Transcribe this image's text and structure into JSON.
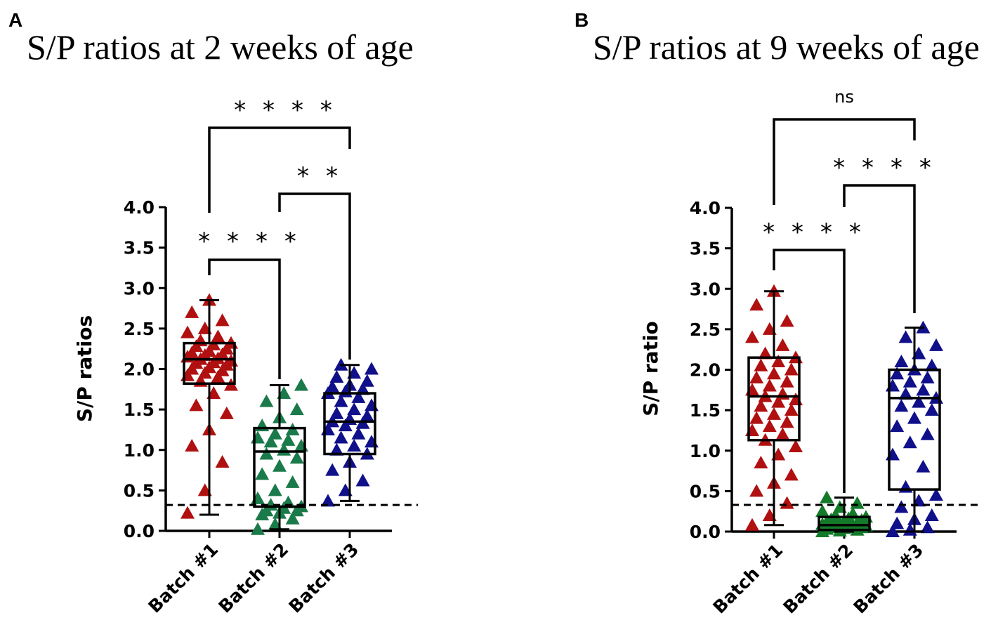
{
  "chart_data": [
    {
      "panel": "A",
      "type": "box-scatter",
      "title": "S/P ratios at 2 weeks of age",
      "ylabel": "S/P ratios",
      "xlabel": "",
      "ylim": [
        0,
        4.0
      ],
      "yticks": [
        "0.0",
        "0.5",
        "1.0",
        "1.5",
        "2.0",
        "2.5",
        "3.0",
        "3.5",
        "4.0"
      ],
      "cutoff": 0.32,
      "categories": [
        "Batch #1",
        "Batch #2",
        "Batch #3"
      ],
      "series": [
        {
          "name": "Batch #1",
          "color": "#b01010",
          "box": {
            "min": 0.2,
            "q1": 1.82,
            "median": 2.12,
            "q3": 2.32,
            "max": 2.85
          },
          "values": [
            0.22,
            0.5,
            0.85,
            1.05,
            1.25,
            1.45,
            1.55,
            1.7,
            1.8,
            1.85,
            1.9,
            1.92,
            1.95,
            1.98,
            2.0,
            2.02,
            2.05,
            2.07,
            2.08,
            2.1,
            2.12,
            2.13,
            2.15,
            2.17,
            2.18,
            2.2,
            2.22,
            2.25,
            2.28,
            2.3,
            2.32,
            2.35,
            2.4,
            2.45,
            2.5,
            2.6,
            2.7,
            2.85
          ]
        },
        {
          "name": "Batch #2",
          "color": "#1a7a4a",
          "box": {
            "min": 0.02,
            "q1": 0.3,
            "median": 0.98,
            "q3": 1.27,
            "max": 1.8
          },
          "values": [
            0.02,
            0.08,
            0.15,
            0.2,
            0.22,
            0.25,
            0.25,
            0.28,
            0.3,
            0.32,
            0.35,
            0.4,
            0.5,
            0.6,
            0.7,
            0.8,
            0.9,
            0.95,
            1.0,
            1.05,
            1.1,
            1.12,
            1.15,
            1.2,
            1.25,
            1.3,
            1.4,
            1.5,
            1.6,
            1.7,
            1.8
          ]
        },
        {
          "name": "Batch #3",
          "color": "#10108a",
          "box": {
            "min": 0.37,
            "q1": 0.95,
            "median": 1.35,
            "q3": 1.7,
            "max": 2.05
          },
          "values": [
            0.37,
            0.5,
            0.62,
            0.75,
            0.85,
            0.95,
            1.0,
            1.05,
            1.1,
            1.15,
            1.2,
            1.25,
            1.3,
            1.33,
            1.35,
            1.38,
            1.42,
            1.45,
            1.5,
            1.55,
            1.6,
            1.65,
            1.7,
            1.72,
            1.75,
            1.78,
            1.8,
            1.85,
            1.9,
            1.95,
            2.0,
            2.05
          ]
        }
      ],
      "comparisons": [
        {
          "from": "Batch #1",
          "to": "Batch #2",
          "label": "* * * *"
        },
        {
          "from": "Batch #2",
          "to": "Batch #3",
          "label": "* *"
        },
        {
          "from": "Batch #1",
          "to": "Batch #3",
          "label": "* * * *"
        }
      ]
    },
    {
      "panel": "B",
      "type": "box-scatter",
      "title": "S/P ratios at 9 weeks of age",
      "ylabel": "S/P ratio",
      "xlabel": "",
      "ylim": [
        0,
        4.0
      ],
      "yticks": [
        "0.0",
        "0.5",
        "1.0",
        "1.5",
        "2.0",
        "2.5",
        "3.0",
        "3.5",
        "4.0"
      ],
      "cutoff": 0.33,
      "categories": [
        "Batch #1",
        "Batch #2",
        "Batch #3"
      ],
      "series": [
        {
          "name": "Batch #1",
          "color": "#b01010",
          "box": {
            "min": 0.08,
            "q1": 1.13,
            "median": 1.67,
            "q3": 2.15,
            "max": 2.97
          },
          "values": [
            0.08,
            0.2,
            0.35,
            0.5,
            0.6,
            0.7,
            0.85,
            0.95,
            1.05,
            1.13,
            1.2,
            1.25,
            1.3,
            1.35,
            1.4,
            1.45,
            1.5,
            1.55,
            1.6,
            1.63,
            1.67,
            1.7,
            1.75,
            1.8,
            1.85,
            1.9,
            1.95,
            2.0,
            2.05,
            2.1,
            2.15,
            2.2,
            2.3,
            2.4,
            2.5,
            2.6,
            2.8,
            2.97
          ]
        },
        {
          "name": "Batch #2",
          "color": "#137a2a",
          "box": {
            "min": 0.0,
            "q1": 0.02,
            "median": 0.08,
            "q3": 0.18,
            "max": 0.42
          },
          "values": [
            0.0,
            0.01,
            0.02,
            0.03,
            0.04,
            0.05,
            0.05,
            0.06,
            0.07,
            0.08,
            0.08,
            0.09,
            0.1,
            0.11,
            0.12,
            0.13,
            0.14,
            0.15,
            0.16,
            0.18,
            0.2,
            0.22,
            0.25,
            0.3,
            0.35,
            0.42
          ]
        },
        {
          "name": "Batch #3",
          "color": "#10108a",
          "box": {
            "min": 0.0,
            "q1": 0.52,
            "median": 1.65,
            "q3": 2.0,
            "max": 2.52
          },
          "values": [
            0.0,
            0.02,
            0.05,
            0.1,
            0.15,
            0.2,
            0.3,
            0.38,
            0.45,
            0.55,
            0.8,
            0.95,
            1.1,
            1.2,
            1.3,
            1.4,
            1.5,
            1.55,
            1.6,
            1.65,
            1.7,
            1.75,
            1.8,
            1.85,
            1.9,
            1.95,
            2.0,
            2.05,
            2.1,
            2.2,
            2.3,
            2.4,
            2.52
          ]
        }
      ],
      "comparisons": [
        {
          "from": "Batch #1",
          "to": "Batch #2",
          "label": "* * * *"
        },
        {
          "from": "Batch #2",
          "to": "Batch #3",
          "label": "* * * *"
        },
        {
          "from": "Batch #1",
          "to": "Batch #3",
          "label": "ns"
        }
      ]
    }
  ]
}
